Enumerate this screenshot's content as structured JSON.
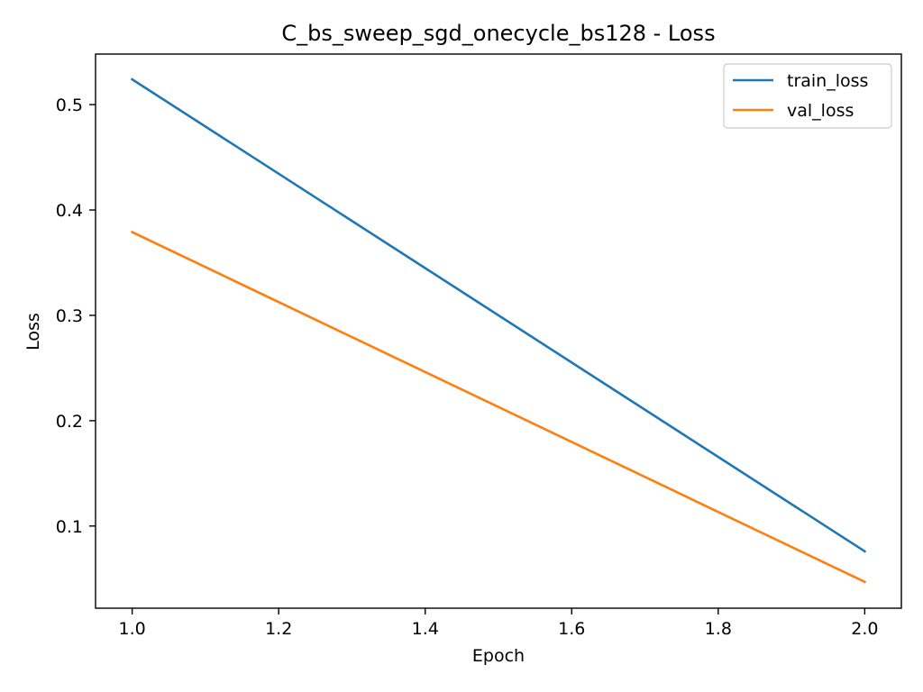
{
  "chart_data": {
    "type": "line",
    "title": "C_bs_sweep_sgd_onecycle_bs128 - Loss",
    "xlabel": "Epoch",
    "ylabel": "Loss",
    "xlim": [
      0.95,
      2.05
    ],
    "ylim": [
      0.022,
      0.548
    ],
    "x_ticks": [
      1.0,
      1.2,
      1.4,
      1.6,
      1.8,
      2.0
    ],
    "x_tick_labels": [
      "1.0",
      "1.2",
      "1.4",
      "1.6",
      "1.8",
      "2.0"
    ],
    "y_ticks": [
      0.1,
      0.2,
      0.3,
      0.4,
      0.5
    ],
    "y_tick_labels": [
      "0.1",
      "0.2",
      "0.3",
      "0.4",
      "0.5"
    ],
    "grid": false,
    "legend_position": "top-right",
    "x": [
      1.0,
      2.0
    ],
    "series": [
      {
        "name": "train_loss",
        "values": [
          0.524,
          0.076
        ],
        "color": "#1f77b4"
      },
      {
        "name": "val_loss",
        "values": [
          0.379,
          0.047
        ],
        "color": "#ff7f0e"
      }
    ]
  }
}
